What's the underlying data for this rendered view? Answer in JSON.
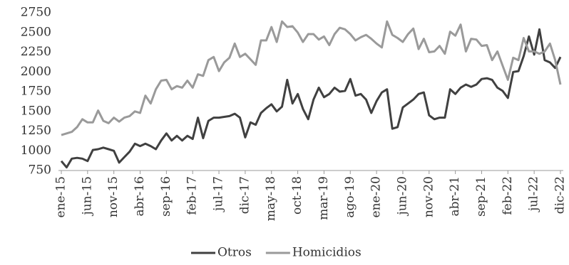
{
  "chart_data": {
    "type": "line",
    "categories": [
      "ene-15",
      null,
      null,
      null,
      null,
      "jun-15",
      null,
      null,
      null,
      null,
      "nov-15",
      null,
      null,
      null,
      null,
      "abr-16",
      null,
      null,
      null,
      null,
      "sep-16",
      null,
      null,
      null,
      null,
      "feb-17",
      null,
      null,
      null,
      null,
      "jul-17",
      null,
      null,
      null,
      null,
      "dic-17",
      null,
      null,
      null,
      null,
      "may-18",
      null,
      null,
      null,
      null,
      "oct-18",
      null,
      null,
      null,
      null,
      "mar-19",
      null,
      null,
      null,
      null,
      "ago-19",
      null,
      null,
      null,
      null,
      "ene-20",
      null,
      null,
      null,
      null,
      "jun-20",
      null,
      null,
      null,
      null,
      "nov-20",
      null,
      null,
      null,
      null,
      "abr-21",
      null,
      null,
      null,
      null,
      "sep-21",
      null,
      null,
      null,
      null,
      "feb-22",
      null,
      null,
      null,
      null,
      "jul-22",
      null,
      null,
      null,
      null,
      "dic-22"
    ],
    "series": [
      {
        "name": "Otros",
        "color": "#404040",
        "values": [
          870,
          790,
          900,
          910,
          900,
          870,
          1010,
          1020,
          1040,
          1020,
          1000,
          850,
          920,
          990,
          1090,
          1060,
          1090,
          1060,
          1020,
          1130,
          1220,
          1130,
          1190,
          1130,
          1190,
          1150,
          1420,
          1160,
          1380,
          1420,
          1420,
          1430,
          1440,
          1470,
          1420,
          1170,
          1360,
          1330,
          1480,
          1540,
          1590,
          1500,
          1560,
          1900,
          1600,
          1720,
          1530,
          1400,
          1650,
          1800,
          1680,
          1720,
          1800,
          1750,
          1760,
          1910,
          1700,
          1720,
          1650,
          1480,
          1630,
          1740,
          1780,
          1280,
          1300,
          1550,
          1600,
          1650,
          1720,
          1740,
          1450,
          1400,
          1420,
          1420,
          1780,
          1720,
          1800,
          1840,
          1810,
          1840,
          1910,
          1920,
          1900,
          1800,
          1760,
          1670,
          2000,
          2010,
          2200,
          2450,
          2220,
          2540,
          2150,
          2120,
          2050,
          2190
        ]
      },
      {
        "name": "Homicidios",
        "color": "#9a9a9a",
        "values": [
          1200,
          1220,
          1240,
          1300,
          1400,
          1360,
          1360,
          1510,
          1380,
          1350,
          1420,
          1370,
          1420,
          1440,
          1500,
          1480,
          1700,
          1600,
          1780,
          1890,
          1900,
          1780,
          1820,
          1800,
          1890,
          1800,
          1970,
          1950,
          2150,
          2190,
          2010,
          2120,
          2180,
          2360,
          2190,
          2230,
          2160,
          2090,
          2400,
          2400,
          2570,
          2380,
          2640,
          2570,
          2580,
          2500,
          2380,
          2480,
          2480,
          2410,
          2450,
          2340,
          2480,
          2560,
          2540,
          2480,
          2400,
          2440,
          2470,
          2420,
          2360,
          2310,
          2640,
          2470,
          2430,
          2380,
          2480,
          2550,
          2290,
          2420,
          2250,
          2260,
          2330,
          2230,
          2510,
          2460,
          2600,
          2260,
          2420,
          2410,
          2330,
          2340,
          2150,
          2260,
          2080,
          1900,
          2180,
          2150,
          2430,
          2260,
          2260,
          2230,
          2260,
          2360,
          2150,
          1840
        ]
      }
    ],
    "ylim": [
      750,
      2750
    ],
    "yticks": [
      750,
      1000,
      1250,
      1500,
      1750,
      2000,
      2250,
      2500,
      2750
    ],
    "grid": false,
    "legend": "bottom"
  }
}
